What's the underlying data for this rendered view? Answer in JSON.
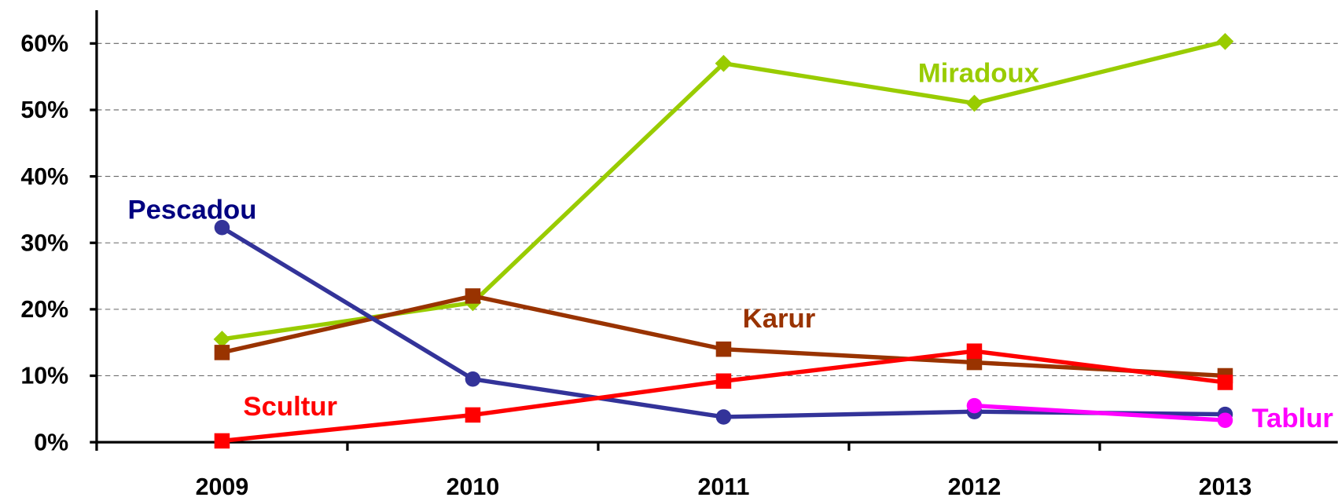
{
  "chart_data": {
    "type": "line",
    "categories": [
      "2009",
      "2010",
      "2011",
      "2012",
      "2013"
    ],
    "series": [
      {
        "name": "Miradoux",
        "color": "#99cc00",
        "marker": "diamond",
        "values": [
          15.5,
          21,
          57,
          51,
          60.3
        ]
      },
      {
        "name": "Karur",
        "color": "#993300",
        "marker": "square",
        "values": [
          13.5,
          22,
          14,
          12,
          10
        ]
      },
      {
        "name": "Pescadou",
        "color": "#333399",
        "label_color": "#000080",
        "marker": "circle",
        "values": [
          32.3,
          9.5,
          3.8,
          4.6,
          4.2
        ]
      },
      {
        "name": "Scultur",
        "color": "#ff0000",
        "marker": "square",
        "values": [
          0.2,
          4.1,
          9.2,
          13.7,
          9
        ]
      },
      {
        "name": "Tablur",
        "color": "#ff00ff",
        "marker": "circle",
        "values": [
          null,
          null,
          null,
          5.5,
          3.3
        ]
      }
    ],
    "ylim": [
      0,
      65
    ],
    "yticks": [
      {
        "value": 0,
        "label": "0%"
      },
      {
        "value": 10,
        "label": "10%"
      },
      {
        "value": 20,
        "label": "20%"
      },
      {
        "value": 30,
        "label": "30%"
      },
      {
        "value": 40,
        "label": "40%"
      },
      {
        "value": 50,
        "label": "50%"
      },
      {
        "value": 60,
        "label": "60%"
      }
    ],
    "grid": true
  }
}
